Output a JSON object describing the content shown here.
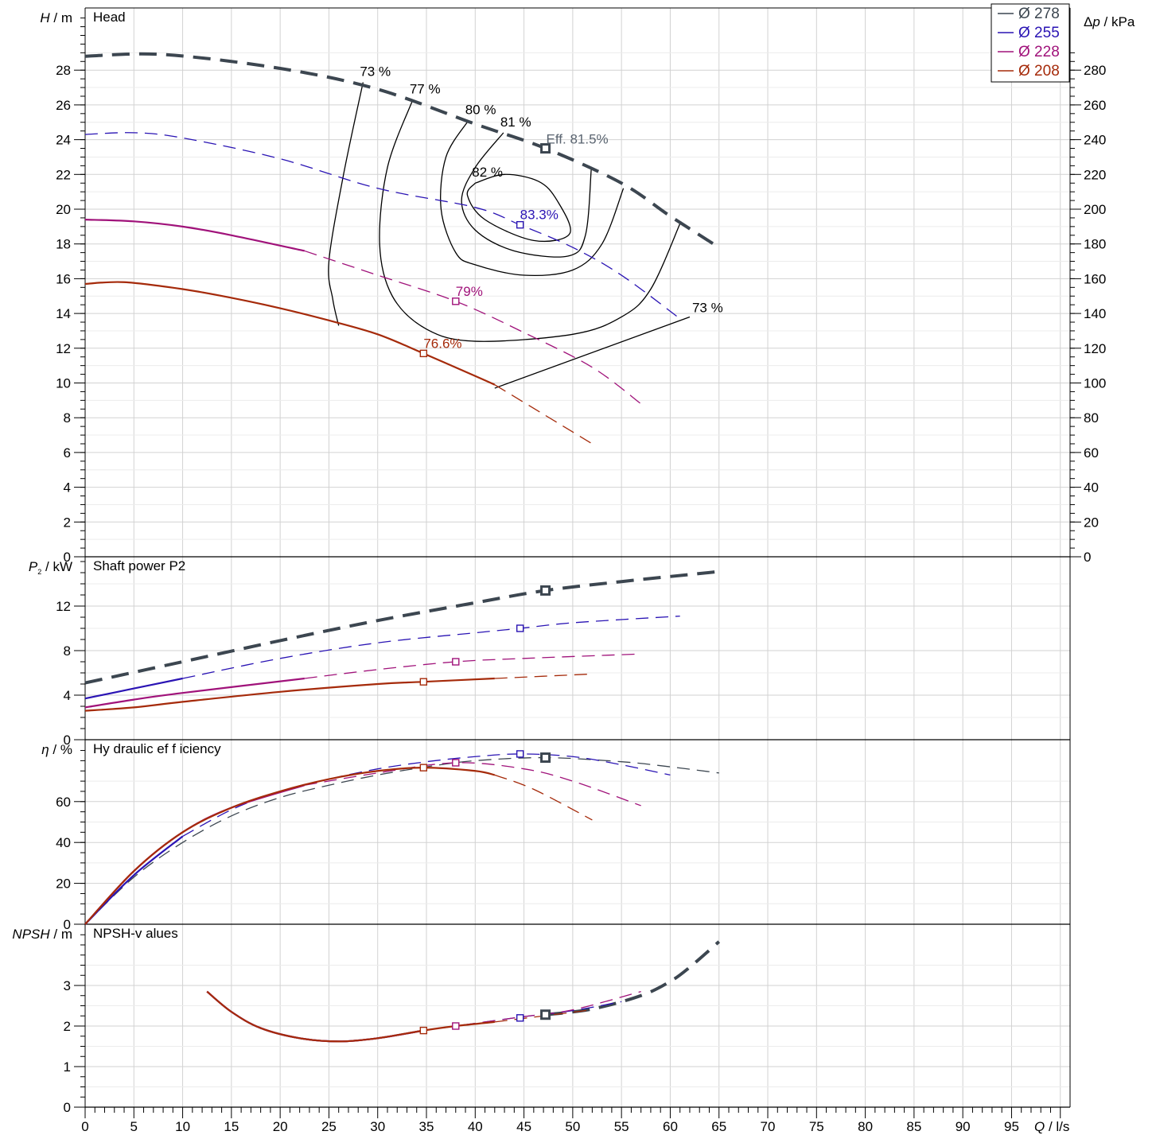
{
  "chart_data": {
    "type": "line",
    "x_axis": {
      "label_symbol": "Q",
      "label_unit": "/ l/s",
      "range": [
        0,
        101
      ],
      "ticks": [
        0,
        5,
        10,
        15,
        20,
        25,
        30,
        35,
        40,
        45,
        50,
        55,
        60,
        65,
        70,
        75,
        80,
        85,
        90,
        95
      ]
    },
    "legend": {
      "placement": "top-right",
      "items": [
        {
          "label": "Ø 278",
          "color": "#3c4650"
        },
        {
          "label": "Ø 255",
          "color": "#2a14b4"
        },
        {
          "label": "Ø 228",
          "color": "#a0127a"
        },
        {
          "label": "Ø 208",
          "color": "#a52a0a"
        }
      ]
    },
    "panels": [
      {
        "id": "head",
        "title": "Head",
        "ylabel_symbol": "H",
        "ylabel_unit": "/ m",
        "ylim": [
          0,
          30
        ],
        "yticks": [
          0,
          2,
          4,
          6,
          8,
          10,
          12,
          14,
          16,
          18,
          20,
          22,
          24,
          26,
          28
        ],
        "y2label_symbol": "Δp",
        "y2label_unit": "/ kPa",
        "y2ticks": [
          0,
          20,
          40,
          60,
          80,
          100,
          120,
          140,
          160,
          180,
          200,
          220,
          240,
          260,
          280
        ],
        "series": [
          {
            "name": "Ø 278",
            "color": "#3c4650",
            "x": [
              0,
              8,
              20,
              30,
              40,
              47.2,
              55,
              60,
              65
            ],
            "y": [
              28.8,
              28.9,
              28.1,
              26.9,
              24.9,
              23.5,
              21.5,
              19.6,
              17.8
            ],
            "solid_from": 8,
            "solid_to": 8,
            "bold": true
          },
          {
            "name": "Ø 255",
            "color": "#2a14b4",
            "x": [
              0,
              5,
              10,
              20,
              30,
              40,
              44.6,
              50,
              55,
              61
            ],
            "y": [
              24.3,
              24.4,
              24.1,
              22.9,
              21.2,
              20.1,
              19.1,
              17.8,
              16.2,
              13.7
            ],
            "solid_from": 0,
            "solid_to": 0
          },
          {
            "name": "Ø 228",
            "color": "#a0127a",
            "x": [
              0,
              5,
              10,
              15,
              22.5,
              30,
              38,
              45,
              52,
              57
            ],
            "y": [
              19.4,
              19.3,
              19.0,
              18.5,
              17.6,
              16.2,
              14.7,
              12.9,
              10.9,
              8.8
            ],
            "solid_from": 0,
            "solid_to": 22.5
          },
          {
            "name": "Ø 208",
            "color": "#a52a0a",
            "x": [
              0,
              4,
              10,
              15,
              20,
              25,
              30,
              34.7,
              40,
              42,
              47,
              52
            ],
            "y": [
              15.7,
              15.8,
              15.4,
              14.9,
              14.3,
              13.6,
              12.8,
              11.7,
              10.4,
              9.9,
              8.2,
              6.5
            ],
            "solid_from": 0,
            "solid_to": 42
          }
        ],
        "iso_efficiency": [
          {
            "label": "73 %",
            "x": [
              28.5,
              26.5,
              25,
              25.4,
              26
            ],
            "y": [
              27.3,
              22,
              17,
              14.8,
              13.3
            ]
          },
          {
            "label": "77 %",
            "x": [
              33.6,
              31,
              30.2,
              31.5,
              35,
              40,
              50,
              55,
              58,
              61.1
            ],
            "y": [
              26.3,
              22.4,
              18,
              15,
              13.1,
              12.4,
              12.8,
              13.8,
              15.4,
              19.3
            ]
          },
          {
            "label": "80 %",
            "x": [
              39.3,
              37,
              36.5,
              38,
              40,
              45,
              50,
              53,
              55.2
            ],
            "y": [
              25.1,
              23,
              20,
              17.5,
              16.8,
              16.2,
              16.5,
              18,
              21.2
            ]
          },
          {
            "label": "81 %",
            "x": [
              42.9,
              40,
              38.6,
              40,
              44,
              49.5,
              51.3,
              51.9
            ],
            "y": [
              24.4,
              22.4,
              20.5,
              18.8,
              17.6,
              17.3,
              18.5,
              22.3
            ]
          },
          {
            "label": "82 %",
            "x": [
              40,
              43,
              46.5,
              48.4,
              49.7,
              46,
              41,
              39.2,
              40
            ],
            "y": [
              21.5,
              22,
              21.6,
              20.5,
              18.6,
              18.2,
              19.4,
              20.8,
              21.5
            ]
          }
        ],
        "iso_low_label": "73 %",
        "iso_low_line": {
          "x": [
            42,
            62
          ],
          "y": [
            9.7,
            13.8
          ]
        },
        "points": [
          {
            "series": "Ø 278",
            "x": 47.2,
            "y": 23.5,
            "label": "Eff.  81.5%"
          },
          {
            "series": "Ø 255",
            "x": 44.6,
            "y": 19.1,
            "label": "83.3%"
          },
          {
            "series": "Ø 228",
            "x": 38,
            "y": 14.7,
            "label": "79%"
          },
          {
            "series": "Ø 208",
            "x": 34.7,
            "y": 11.7,
            "label": "76.6%"
          }
        ]
      },
      {
        "id": "power",
        "title": "Shaft power P2",
        "ylabel_symbol": "P",
        "ylabel_sub": "2",
        "ylabel_unit": "/ kW",
        "ylim": [
          0,
          16.6
        ],
        "yticks": [
          0,
          4,
          8,
          12
        ],
        "series": [
          {
            "name": "Ø 278",
            "color": "#3c4650",
            "x": [
              0,
              10,
              20,
              30,
              40,
              47.2,
              55,
              65
            ],
            "y": [
              5.1,
              7.0,
              8.9,
              10.7,
              12.3,
              13.4,
              14.2,
              15.1
            ],
            "solid_from": 10,
            "solid_to": 10,
            "bold": true
          },
          {
            "name": "Ø 255",
            "color": "#2a14b4",
            "x": [
              0,
              5,
              10,
              20,
              30,
              40,
              44.6,
              50,
              61
            ],
            "y": [
              3.7,
              4.6,
              5.5,
              7.3,
              8.7,
              9.6,
              10.0,
              10.5,
              11.1
            ],
            "solid_from": 0,
            "solid_to": 10
          },
          {
            "name": "Ø 228",
            "color": "#a0127a",
            "x": [
              0,
              5,
              10,
              22.5,
              30,
              38,
              45,
              57
            ],
            "y": [
              2.9,
              3.6,
              4.2,
              5.5,
              6.3,
              7.0,
              7.3,
              7.7
            ],
            "solid_from": 0,
            "solid_to": 22.5
          },
          {
            "name": "Ø 208",
            "color": "#a52a0a",
            "x": [
              0,
              5,
              10,
              20,
              30,
              34.7,
              42,
              52
            ],
            "y": [
              2.6,
              2.9,
              3.4,
              4.3,
              5.0,
              5.2,
              5.5,
              5.9
            ],
            "solid_from": 0,
            "solid_to": 42
          }
        ],
        "points": [
          {
            "series": "Ø 278",
            "x": 47.2,
            "y": 13.4
          },
          {
            "series": "Ø 255",
            "x": 44.6,
            "y": 10.0
          },
          {
            "series": "Ø 228",
            "x": 38,
            "y": 7.0
          },
          {
            "series": "Ø 208",
            "x": 34.7,
            "y": 5.2
          }
        ]
      },
      {
        "id": "efficiency",
        "title": "Hy draulic ef f iciency",
        "ylabel_symbol": "η",
        "ylabel_unit": "/ %",
        "ylim": [
          0,
          90
        ],
        "yticks": [
          0,
          20,
          40,
          60
        ],
        "series": [
          {
            "name": "Ø 278",
            "color": "#3c4650",
            "x": [
              0,
              5,
              10,
              15,
              20,
              25,
              30,
              35,
              40,
              47.2,
              55,
              60,
              65
            ],
            "y": [
              0,
              23,
              40,
              53,
              62,
              68,
              73,
              77,
              80,
              81.5,
              79.5,
              77,
              74
            ],
            "solid_from": 0,
            "solid_to": 0
          },
          {
            "name": "Ø 255",
            "color": "#2a14b4",
            "x": [
              0,
              5,
              10,
              15,
              20,
              25,
              30,
              35,
              40,
              44.6,
              50,
              55,
              60
            ],
            "y": [
              0,
              24,
              43,
              56,
              65,
              71,
              76,
              79.5,
              82,
              83.3,
              82,
              78,
              73
            ],
            "solid_from": 0,
            "solid_to": 10
          },
          {
            "name": "Ø 228",
            "color": "#a0127a",
            "x": [
              0,
              5,
              10,
              15,
              22.5,
              30,
              38,
              45,
              50,
              57
            ],
            "y": [
              0,
              26,
              45,
              57,
              68,
              74,
              79,
              76,
              70,
              58
            ],
            "solid_from": 0,
            "solid_to": 22.5
          },
          {
            "name": "Ø 208",
            "color": "#a52a0a",
            "x": [
              0,
              5,
              10,
              15,
              20,
              25,
              30,
              34.7,
              40,
              42,
              46,
              52
            ],
            "y": [
              0,
              26,
              45,
              57,
              65,
              71,
              75,
              76.6,
              75,
              73,
              66,
              51
            ],
            "solid_from": 0,
            "solid_to": 42
          }
        ],
        "points": [
          {
            "series": "Ø 278",
            "x": 47.2,
            "y": 81.5
          },
          {
            "series": "Ø 255",
            "x": 44.6,
            "y": 83.3
          },
          {
            "series": "Ø 228",
            "x": 38,
            "y": 79
          },
          {
            "series": "Ø 208",
            "x": 34.7,
            "y": 76.6
          }
        ]
      },
      {
        "id": "npsh",
        "title": "NPSH-v alues",
        "ylabel_symbol": "NPSH",
        "ylabel_unit": "/ m",
        "ylim": [
          0,
          4.35
        ],
        "yticks": [
          0,
          1,
          2,
          3
        ],
        "series": [
          {
            "name": "Ø 278",
            "color": "#3c4650",
            "x": [
              47.2,
              52,
              57,
              60,
              62,
              65
            ],
            "y": [
              2.28,
              2.42,
              2.75,
              3.1,
              3.45,
              4.08
            ],
            "solid_from": 0,
            "solid_to": 0,
            "bold": true
          },
          {
            "name": "Ø 255",
            "color": "#2a14b4",
            "x": [
              12.5,
              15,
              18,
              22,
              26,
              30,
              34.7,
              38,
              44.6,
              50,
              55
            ],
            "y": [
              2.85,
              2.35,
              1.95,
              1.7,
              1.62,
              1.7,
              1.89,
              2.0,
              2.22,
              2.38,
              2.6
            ],
            "solid_from": 12.5,
            "solid_to": 34.7
          },
          {
            "name": "Ø 228",
            "color": "#a0127a",
            "x": [
              12.5,
              15,
              18,
              22,
              26,
              30,
              34.7,
              38,
              44.6,
              50,
              57
            ],
            "y": [
              2.85,
              2.35,
              1.95,
              1.7,
              1.62,
              1.7,
              1.89,
              2.0,
              2.22,
              2.4,
              2.85
            ],
            "solid_from": 12.5,
            "solid_to": 34.7
          },
          {
            "name": "Ø 208",
            "color": "#a52a0a",
            "x": [
              12.5,
              15,
              18,
              22,
              26,
              30,
              34.7,
              38,
              42,
              46,
              52
            ],
            "y": [
              2.85,
              2.35,
              1.95,
              1.7,
              1.62,
              1.7,
              1.89,
              2.0,
              2.1,
              2.22,
              2.4
            ],
            "solid_from": 12.5,
            "solid_to": 42
          }
        ],
        "points": [
          {
            "series": "Ø 278",
            "x": 47.2,
            "y": 2.28
          },
          {
            "series": "Ø 255",
            "x": 44.6,
            "y": 2.2
          },
          {
            "series": "Ø 228",
            "x": 38,
            "y": 2.0
          },
          {
            "series": "Ø 208",
            "x": 34.7,
            "y": 1.89
          }
        ]
      }
    ]
  }
}
